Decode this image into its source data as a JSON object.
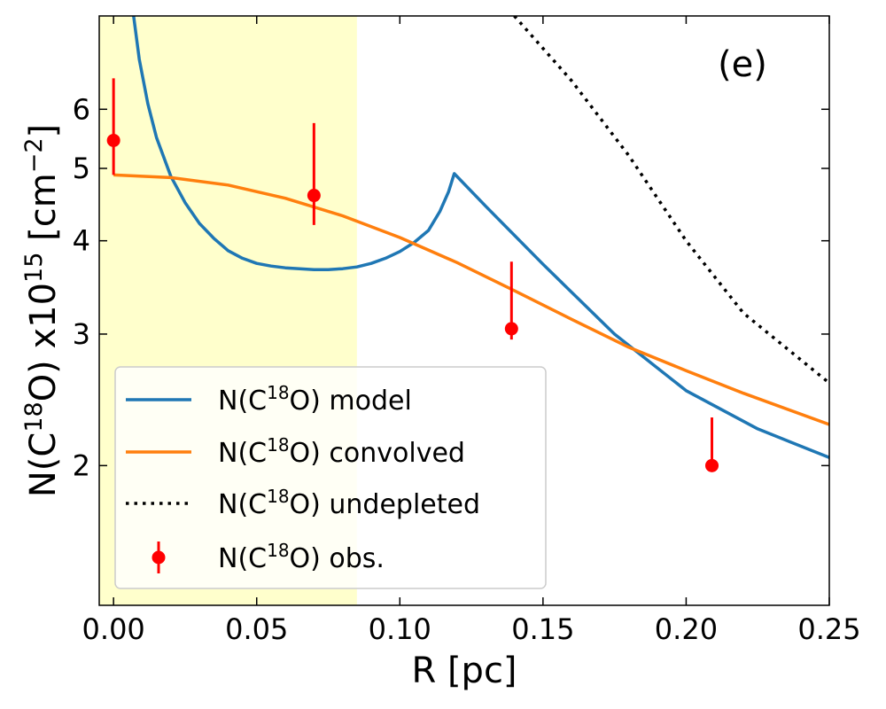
{
  "chart_data": {
    "type": "line",
    "panel_label": "(e)",
    "xlabel": "R [pc]",
    "ylabel": {
      "prefix": "N(C",
      "iso": "18",
      "middle": "O) x10",
      "exp": "15",
      "unit_open": " [cm",
      "unit_exp": "−2",
      "unit_close": "]"
    },
    "xlim": [
      -0.005,
      0.25
    ],
    "ylim": [
      1.3,
      8.0
    ],
    "y_scale": "log",
    "grid": false,
    "legend_position": "lower-left",
    "x_ticks": [
      0.0,
      0.05,
      0.1,
      0.15,
      0.2,
      0.25
    ],
    "x_tick_labels": [
      "0.00",
      "0.05",
      "0.10",
      "0.15",
      "0.20",
      "0.25"
    ],
    "y_ticks": [
      2,
      3,
      4,
      5,
      6
    ],
    "y_tick_labels": [
      "2",
      "3",
      "4",
      "5",
      "6"
    ],
    "shaded_region": {
      "x": [
        -0.005,
        0.085
      ],
      "color": "#ffffcc"
    },
    "series": [
      {
        "name_prefix": "N(C",
        "name_iso": "18",
        "name_suffix": "O) model",
        "style": "solid",
        "color": "#1f77b4",
        "x": [
          0.007,
          0.009,
          0.012,
          0.015,
          0.02,
          0.025,
          0.03,
          0.035,
          0.04,
          0.045,
          0.05,
          0.055,
          0.06,
          0.065,
          0.07,
          0.075,
          0.08,
          0.085,
          0.09,
          0.095,
          0.1,
          0.105,
          0.11,
          0.114,
          0.117,
          0.119,
          0.13,
          0.15,
          0.175,
          0.2,
          0.225,
          0.25
        ],
        "y": [
          8.0,
          7.0,
          6.1,
          5.5,
          4.88,
          4.5,
          4.22,
          4.03,
          3.88,
          3.79,
          3.73,
          3.7,
          3.68,
          3.67,
          3.66,
          3.66,
          3.67,
          3.69,
          3.73,
          3.79,
          3.87,
          3.98,
          4.13,
          4.38,
          4.65,
          4.92,
          4.45,
          3.72,
          3.0,
          2.52,
          2.24,
          2.05
        ]
      },
      {
        "name_prefix": "N(C",
        "name_iso": "18",
        "name_suffix": "O) convolved",
        "style": "solid",
        "color": "#ff7f0e",
        "x": [
          0.0,
          0.02,
          0.04,
          0.06,
          0.08,
          0.1,
          0.12,
          0.14,
          0.16,
          0.18,
          0.2,
          0.22,
          0.25
        ],
        "y": [
          4.9,
          4.86,
          4.75,
          4.56,
          4.32,
          4.04,
          3.74,
          3.43,
          3.14,
          2.88,
          2.68,
          2.5,
          2.27
        ]
      },
      {
        "name_prefix": "N(C",
        "name_iso": "18",
        "name_suffix": "O) undepleted",
        "style": "dotted",
        "color": "#000000",
        "x": [
          0.14,
          0.16,
          0.18,
          0.2,
          0.22,
          0.25
        ],
        "y": [
          8.0,
          6.55,
          5.2,
          4.0,
          3.2,
          2.58
        ]
      },
      {
        "name_prefix": "N(C",
        "name_iso": "18",
        "name_suffix": "O) obs.",
        "style": "errorbar",
        "color": "#ff0000",
        "x": [
          0.0,
          0.07,
          0.139,
          0.209
        ],
        "y": [
          5.45,
          4.6,
          3.05,
          2.0
        ],
        "yerr_low": [
          4.9,
          4.2,
          2.95,
          1.98
        ],
        "yerr_high": [
          6.6,
          5.75,
          3.75,
          2.32
        ]
      }
    ]
  }
}
